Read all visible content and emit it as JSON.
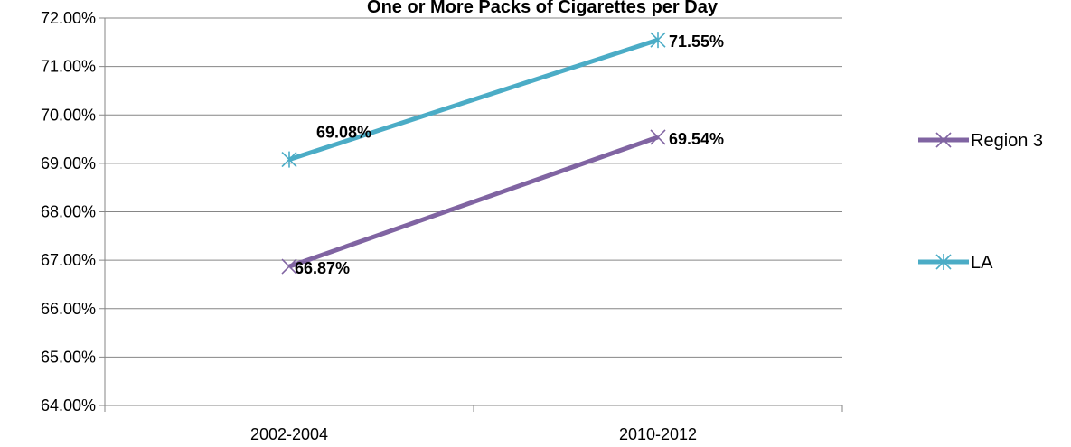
{
  "chart_data": {
    "type": "line",
    "title": "One or More Packs of Cigarettes per Day",
    "categories": [
      "2002-2004",
      "2010-2012"
    ],
    "series": [
      {
        "name": "Region 3",
        "values": [
          66.87,
          69.54
        ],
        "labels": [
          "66.87%",
          "69.54%"
        ],
        "color": "#8064a2",
        "marker": "x"
      },
      {
        "name": "LA",
        "values": [
          69.08,
          71.55
        ],
        "labels": [
          "69.08%",
          "71.55%"
        ],
        "color": "#4bacc6",
        "marker": "star"
      }
    ],
    "ylim": [
      64,
      72
    ],
    "yticks": [
      64,
      65,
      66,
      67,
      68,
      69,
      70,
      71,
      72
    ],
    "ytick_labels": [
      "64.00%",
      "65.00%",
      "66.00%",
      "67.00%",
      "68.00%",
      "69.00%",
      "70.00%",
      "71.00%",
      "72.00%"
    ],
    "xlabel": "",
    "ylabel": "",
    "grid": true,
    "legend_position": "right"
  }
}
